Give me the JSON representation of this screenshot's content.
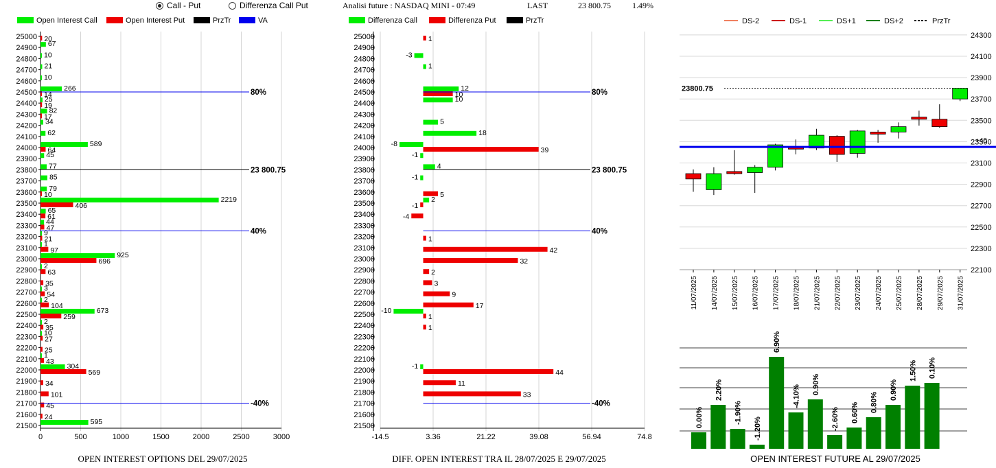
{
  "controls": {
    "radio_call_put": {
      "label": "Call - Put",
      "selected": true
    },
    "radio_diff": {
      "label": "Differenza Call Put",
      "selected": false
    }
  },
  "header": {
    "title": "Analisi future : NASDAQ MINI - 07:49",
    "last_label": "LAST",
    "last_value": "23 800.75",
    "last_pct": "1.49%"
  },
  "colors": {
    "green": "#00ee00",
    "red": "#ee0000",
    "blue": "#0000ee",
    "dark_green": "#008000"
  },
  "chart_data": [
    {
      "id": "oi",
      "type": "bar",
      "orientation": "horizontal",
      "caption": "OPEN INTEREST OPTIONS DEL 29/07/2025",
      "legend": [
        "Open Interest Call",
        "Open Interest Put",
        "PrzTr",
        "VA"
      ],
      "strikes": [
        25000,
        24900,
        24800,
        24700,
        24600,
        24500,
        24400,
        24300,
        24200,
        24100,
        24000,
        23900,
        23800,
        23700,
        23600,
        23500,
        23400,
        23300,
        23200,
        23100,
        23000,
        22900,
        22800,
        22700,
        22600,
        22500,
        22400,
        22300,
        22200,
        22100,
        22000,
        21900,
        21800,
        21700,
        21600,
        21500
      ],
      "series": [
        {
          "name": "Open Interest Call",
          "values": [
            0,
            67,
            10,
            21,
            10,
            266,
            25,
            82,
            34,
            62,
            589,
            45,
            77,
            85,
            79,
            2219,
            65,
            44,
            9,
            1,
            925,
            2,
            0,
            3,
            2,
            673,
            2,
            10,
            0,
            1,
            304,
            0,
            0,
            0,
            0,
            595
          ]
        },
        {
          "name": "Open Interest Put",
          "values": [
            20,
            0,
            0,
            0,
            0,
            14,
            19,
            17,
            0,
            0,
            64,
            0,
            0,
            0,
            10,
            406,
            61,
            47,
            21,
            97,
            696,
            63,
            35,
            54,
            104,
            259,
            35,
            27,
            25,
            43,
            569,
            34,
            101,
            45,
            24,
            0
          ]
        }
      ],
      "lines": [
        {
          "strike": 24500,
          "label": "80%"
        },
        {
          "strike": 23800,
          "label": "23 800.75"
        },
        {
          "strike": 23250,
          "label": "40%"
        },
        {
          "strike": 21700,
          "label": "-40%"
        }
      ],
      "xticks": [
        0,
        500,
        1000,
        1500,
        2000,
        2500,
        3000
      ],
      "xlim": [
        0,
        3000
      ]
    },
    {
      "id": "diff",
      "type": "bar",
      "orientation": "horizontal",
      "caption": "DIFF. OPEN INTEREST TRA IL 28/07/2025 E 29/07/2025",
      "legend": [
        "Differenza Call",
        "Differenza Put",
        "PrzTr"
      ],
      "strikes": [
        25000,
        24900,
        24800,
        24700,
        24600,
        24500,
        24400,
        24300,
        24200,
        24100,
        24000,
        23900,
        23800,
        23700,
        23600,
        23500,
        23400,
        23300,
        23200,
        23100,
        23000,
        22900,
        22800,
        22700,
        22600,
        22500,
        22400,
        22300,
        22200,
        22100,
        22000,
        21900,
        21800,
        21700,
        21600,
        21500
      ],
      "series": [
        {
          "name": "Differenza Call",
          "values": [
            0,
            0,
            -3,
            1,
            0,
            12,
            10,
            0,
            5,
            18,
            -8,
            -1,
            4,
            -1,
            0,
            2,
            0,
            0,
            0,
            0,
            0,
            0,
            0,
            0,
            0,
            -10,
            0,
            0,
            0,
            0,
            -1,
            0,
            0,
            0,
            0,
            0
          ]
        },
        {
          "name": "Differenza Put",
          "values": [
            1,
            0,
            0,
            0,
            0,
            10,
            0,
            0,
            0,
            0,
            39,
            0,
            0,
            0,
            5,
            -1,
            -4,
            0,
            1,
            42,
            32,
            2,
            3,
            9,
            17,
            1,
            1,
            0,
            0,
            0,
            44,
            11,
            33,
            0,
            0,
            0
          ]
        }
      ],
      "lines": [
        {
          "strike": 24500,
          "label": "80%"
        },
        {
          "strike": 23800,
          "label": "23 800.75"
        },
        {
          "strike": 23250,
          "label": "40%"
        },
        {
          "strike": 21700,
          "label": "-40%"
        }
      ],
      "xticks": [
        "-14.5",
        "3.36",
        "21.22",
        "39.08",
        "56.94",
        "74.8"
      ],
      "xlim": [
        -14.5,
        74.8
      ]
    },
    {
      "id": "candles",
      "type": "candlestick",
      "legend": [
        "DS-2",
        "DS-1",
        "DS+1",
        "DS+2",
        "PrzTr"
      ],
      "dates": [
        "11/07/2025",
        "14/07/2025",
        "15/07/2025",
        "16/07/2025",
        "17/07/2025",
        "18/07/2025",
        "21/07/2025",
        "22/07/2025",
        "23/07/2025",
        "24/07/2025",
        "25/07/2025",
        "28/07/2025",
        "29/07/2025",
        "31/07/2025"
      ],
      "candles": [
        {
          "o": 23000,
          "h": 23040,
          "l": 22830,
          "c": 22950
        },
        {
          "o": 22850,
          "h": 23060,
          "l": 22800,
          "c": 23000
        },
        {
          "o": 23020,
          "h": 23220,
          "l": 22990,
          "c": 23000
        },
        {
          "o": 23010,
          "h": 23080,
          "l": 22820,
          "c": 23060
        },
        {
          "o": 23060,
          "h": 23280,
          "l": 23030,
          "c": 23270
        },
        {
          "o": 23250,
          "h": 23320,
          "l": 23180,
          "c": 23230
        },
        {
          "o": 23240,
          "h": 23420,
          "l": 23220,
          "c": 23360
        },
        {
          "o": 23350,
          "h": 23360,
          "l": 23110,
          "c": 23180
        },
        {
          "o": 23190,
          "h": 23410,
          "l": 23150,
          "c": 23400
        },
        {
          "o": 23390,
          "h": 23410,
          "l": 23290,
          "c": 23370
        },
        {
          "o": 23390,
          "h": 23480,
          "l": 23330,
          "c": 23440
        },
        {
          "o": 23530,
          "h": 23590,
          "l": 23450,
          "c": 23510
        },
        {
          "o": 23510,
          "h": 23650,
          "l": 23430,
          "c": 23440
        },
        {
          "o": 23700,
          "h": 23800,
          "l": 23680,
          "c": 23800
        }
      ],
      "current_price": "23800.75",
      "blue_line_value": 23250,
      "blue_line_label": "+40",
      "yticks": [
        24300,
        24100,
        23900,
        23700,
        23500,
        23300,
        23100,
        22900,
        22700,
        22500,
        22300,
        22100
      ],
      "ylim": [
        22100,
        24370
      ]
    },
    {
      "id": "oi_future",
      "type": "bar",
      "caption": "OPEN INTEREST FUTURE AL 29/07/2025",
      "labels": [
        "0.00%",
        "2.20%",
        "-1.90%",
        "-1.20%",
        "6.90%",
        "-4.10%",
        "0.90%",
        "-2.60%",
        "0.60%",
        "0.80%",
        "0.90%",
        "1.50%",
        "0.10%"
      ],
      "values": [
        24,
        64,
        29,
        6,
        134,
        53,
        72,
        20,
        31,
        46,
        64,
        92,
        96
      ]
    }
  ]
}
